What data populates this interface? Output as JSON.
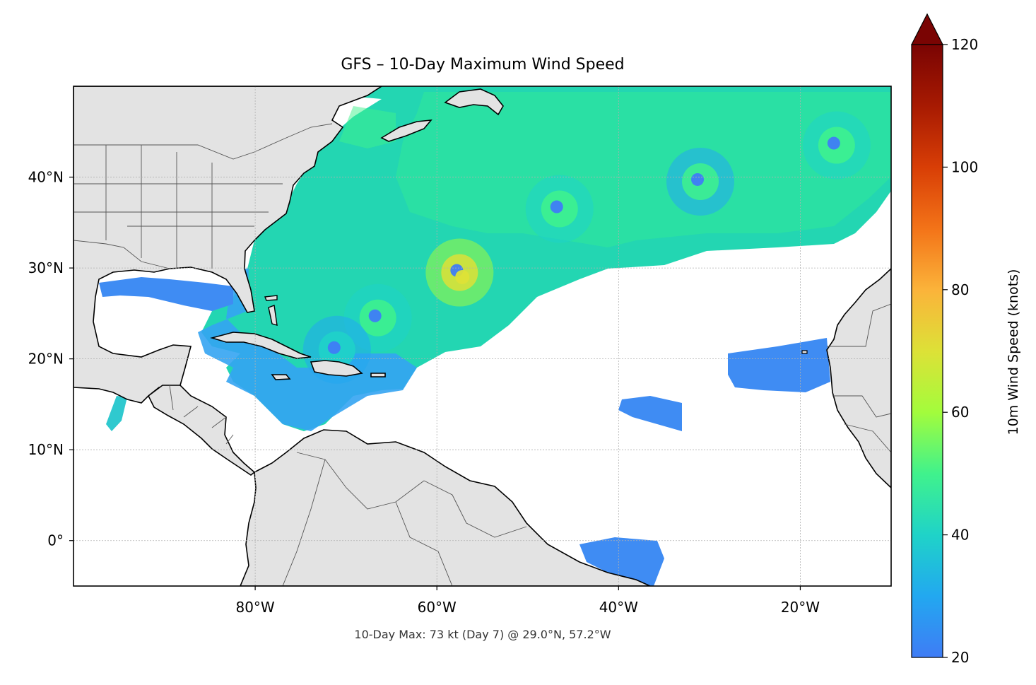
{
  "map": {
    "title": "GFS – 10-Day Maximum Wind Speed",
    "caption": "10-Day Max: 73 kt (Day 7) @ 29.0°N, 57.2°W",
    "extent": {
      "lon_min": -100,
      "lon_max": -10,
      "lat_min": -5,
      "lat_max": 50
    },
    "lon_ticks": [
      {
        "value": -80,
        "label": "80°W"
      },
      {
        "value": -60,
        "label": "60°W"
      },
      {
        "value": -40,
        "label": "40°W"
      },
      {
        "value": -20,
        "label": "20°W"
      }
    ],
    "lat_ticks": [
      {
        "value": 40,
        "label": "40°N"
      },
      {
        "value": 30,
        "label": "30°N"
      },
      {
        "value": 20,
        "label": "20°N"
      },
      {
        "value": 10,
        "label": "10°N"
      },
      {
        "value": 0,
        "label": "0°"
      }
    ],
    "max_point": {
      "lat": 29.0,
      "lon": -57.2,
      "value_kt": 73,
      "day": 7
    },
    "storms": [
      {
        "lat": 36.5,
        "lon": -46.5,
        "peak_kt": 52
      },
      {
        "lat": 29.5,
        "lon": -57.5,
        "peak_kt": 73
      },
      {
        "lat": 24.5,
        "lon": -66.5,
        "peak_kt": 50
      },
      {
        "lat": 21.0,
        "lon": -71.0,
        "peak_kt": 40
      },
      {
        "lat": 39.5,
        "lon": -31.0,
        "peak_kt": 46
      },
      {
        "lat": 43.5,
        "lon": -16.0,
        "peak_kt": 48
      }
    ],
    "colors": {
      "land": "#e3e3e3",
      "coast": "#000000",
      "borders": "#555555",
      "grid": "#b0b0b0"
    }
  },
  "colorbar": {
    "label": "10m Wind Speed (knots)",
    "min": 20,
    "max": 120,
    "extend": "max",
    "ticks": [
      "20",
      "40",
      "60",
      "80",
      "100",
      "120"
    ],
    "tick_values": [
      20,
      40,
      60,
      80,
      100,
      120
    ],
    "colormap": "turbo"
  }
}
